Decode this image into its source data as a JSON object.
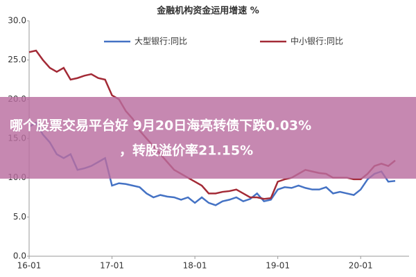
{
  "chart_data": {
    "type": "line",
    "title": "金融机构资金运用增速 %",
    "categories": [
      "16-01",
      null,
      null,
      null,
      null,
      null,
      null,
      null,
      null,
      null,
      null,
      null,
      "17-01",
      null,
      null,
      null,
      null,
      null,
      null,
      null,
      null,
      null,
      null,
      null,
      "18-01",
      null,
      null,
      null,
      null,
      null,
      null,
      null,
      null,
      null,
      null,
      null,
      "19-01",
      null,
      null,
      null,
      null,
      null,
      null,
      null,
      null,
      null,
      null,
      null,
      "20-01",
      null,
      null,
      null,
      null,
      null
    ],
    "series": [
      {
        "name": "大型银行:同比",
        "color": "#4472c4",
        "values": [
          16.5,
          17.0,
          15.5,
          14.5,
          13.0,
          12.5,
          13.0,
          11.0,
          11.2,
          11.5,
          12.0,
          12.5,
          9.0,
          9.3,
          9.2,
          9.0,
          8.8,
          8.0,
          7.5,
          7.8,
          7.6,
          7.5,
          7.2,
          7.5,
          6.8,
          7.5,
          6.8,
          6.5,
          7.0,
          7.2,
          7.5,
          7.0,
          7.3,
          8.0,
          7.0,
          7.2,
          8.5,
          8.8,
          8.7,
          9.0,
          8.7,
          8.5,
          8.5,
          8.8,
          8.0,
          8.2,
          8.0,
          7.8,
          8.5,
          9.8,
          10.5,
          10.8,
          9.5,
          9.6
        ]
      },
      {
        "name": "中小银行:同比",
        "color": "#a32a36",
        "values": [
          26.0,
          26.2,
          25.0,
          24.0,
          23.5,
          24.0,
          22.5,
          22.7,
          23.0,
          23.2,
          22.7,
          22.5,
          20.5,
          20.0,
          18.5,
          17.5,
          16.0,
          15.0,
          14.0,
          13.0,
          12.0,
          11.0,
          10.5,
          10.0,
          9.5,
          9.0,
          8.0,
          8.0,
          8.2,
          8.3,
          8.5,
          8.0,
          7.5,
          7.5,
          7.3,
          7.4,
          9.5,
          9.8,
          10.0,
          10.5,
          11.0,
          10.8,
          10.6,
          10.5,
          10.0,
          10.0,
          10.0,
          9.8,
          9.8,
          10.5,
          11.5,
          11.8,
          11.5,
          12.2
        ]
      }
    ],
    "ylim": [
      0,
      30
    ],
    "yticks": [
      {
        "value": 0,
        "label": "0.0"
      },
      {
        "value": 5,
        "label": "5.0"
      },
      {
        "value": 10,
        "label": "10.0"
      },
      {
        "value": 15,
        "label": "15.0"
      },
      {
        "value": 20,
        "label": "20.0"
      },
      {
        "value": 25,
        "label": "25.0"
      },
      {
        "value": 30,
        "label": "30.0"
      }
    ]
  },
  "banner": {
    "lines": [
      "哪个股票交易平台好 9月20日海亮转债下跌0.03%",
      "，转股溢价率21.15%"
    ]
  }
}
